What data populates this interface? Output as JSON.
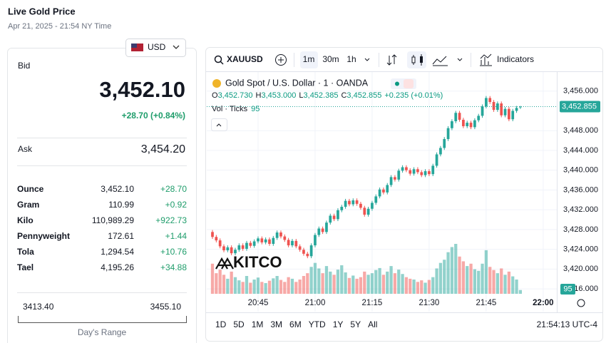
{
  "header": {
    "title": "Live Gold Price",
    "date": "Apr 21, 2025 - 21:54 NY Time",
    "currency": "USD"
  },
  "quote": {
    "bid_label": "Bid",
    "bid": "3,452.10",
    "change": "+28.70 (+0.84%)",
    "ask_label": "Ask",
    "ask": "3,454.20",
    "rows": [
      [
        "Ounce",
        "3,452.10",
        "+28.70"
      ],
      [
        "Gram",
        "110.99",
        "+0.92"
      ],
      [
        "Kilo",
        "110,989.29",
        "+922.73"
      ],
      [
        "Pennyweight",
        "172.61",
        "+1.44"
      ],
      [
        "Tola",
        "1,294.54",
        "+10.76"
      ],
      [
        "Tael",
        "4,195.26",
        "+34.88"
      ]
    ],
    "range_low": "3413.40",
    "range_high": "3455.10",
    "range_label": "Day's Range"
  },
  "chart_ui": {
    "symbol": "XAUUSD",
    "intervals": [
      "1m",
      "30m",
      "1h"
    ],
    "indicators": "Indicators",
    "title": "Gold Spot / U.S. Dollar · 1 · OANDA",
    "legend": {
      "o": "O",
      "open": "3,452.730",
      "h": "H",
      "high": "3,453.000",
      "l": "L",
      "low": "3,452.385",
      "c": "C",
      "close": "3,452.855",
      "change": "+0.235 (+0.01%)"
    },
    "periods": [
      "1D",
      "5D",
      "1M",
      "3M",
      "6M",
      "YTD",
      "1Y",
      "5Y",
      "All"
    ],
    "clock": "21:54:13 UTC-4",
    "watermark": "KITCO"
  },
  "chart_data": {
    "type": "candlestick",
    "up_color": "#26a69a",
    "down_color": "#ef5350",
    "xlim": [
      1231.5,
      1323.4
    ],
    "xticks": [
      {
        "value": 1245,
        "label": "20:45"
      },
      {
        "value": 1260,
        "label": "21:00"
      },
      {
        "value": 1275,
        "label": "21:15"
      },
      {
        "value": 1290,
        "label": "21:30"
      },
      {
        "value": 1305,
        "label": "21:45"
      },
      {
        "value": 1320,
        "label": "22:00"
      }
    ],
    "ylim": [
      3415,
      3460
    ],
    "yticks": [
      {
        "value": 3456,
        "label": "3,456.000"
      },
      {
        "value": 3448,
        "label": "3,448.000"
      },
      {
        "value": 3444,
        "label": "3,444.000"
      },
      {
        "value": 3440,
        "label": "3,440.000"
      },
      {
        "value": 3436,
        "label": "3,436.000"
      },
      {
        "value": 3432,
        "label": "3,432.000"
      },
      {
        "value": 3428,
        "label": "3,428.000"
      },
      {
        "value": 3424,
        "label": "3,424.000"
      },
      {
        "value": 3420,
        "label": "3,420.000"
      },
      {
        "value": 3416,
        "label": "3,416.000"
      }
    ],
    "grid": true,
    "last_price": {
      "value": 3452.855,
      "label": "3,452.855"
    },
    "x": [
      1233,
      1234,
      1235,
      1236,
      1237,
      1238,
      1239,
      1240,
      1241,
      1242,
      1243,
      1244,
      1245,
      1246,
      1247,
      1248,
      1249,
      1250,
      1251,
      1252,
      1253,
      1254,
      1255,
      1256,
      1257,
      1258,
      1259,
      1260,
      1261,
      1262,
      1263,
      1264,
      1265,
      1266,
      1267,
      1268,
      1269,
      1270,
      1271,
      1272,
      1273,
      1274,
      1275,
      1276,
      1277,
      1278,
      1279,
      1280,
      1281,
      1282,
      1283,
      1284,
      1285,
      1286,
      1287,
      1288,
      1289,
      1290,
      1291,
      1292,
      1293,
      1294,
      1295,
      1296,
      1297,
      1298,
      1299,
      1300,
      1301,
      1302,
      1303,
      1304,
      1305,
      1306,
      1307,
      1308,
      1309,
      1310,
      1311,
      1312,
      1313,
      1314
    ],
    "open": [
      3427.5,
      3426.5,
      3425.8,
      3424.6,
      3423.8,
      3424.4,
      3423.2,
      3423.9,
      3424.8,
      3424.1,
      3425.3,
      3424.7,
      3425.6,
      3426.2,
      3425.4,
      3426.0,
      3425.1,
      3426.3,
      3427.4,
      3426.6,
      3425.9,
      3424.8,
      3425.7,
      3424.6,
      3423.9,
      3423.1,
      3422.6,
      3424.8,
      3426.9,
      3428.2,
      3427.5,
      3429.4,
      3430.8,
      3430.1,
      3431.9,
      3432.6,
      3433.8,
      3433.1,
      3433.9,
      3433.2,
      3432.4,
      3431.0,
      3432.2,
      3433.4,
      3434.7,
      3436.1,
      3435.5,
      3437.0,
      3438.6,
      3438.1,
      3439.9,
      3440.6,
      3440.0,
      3439.3,
      3440.2,
      3439.6,
      3439.0,
      3439.8,
      3439.2,
      3440.9,
      3443.2,
      3444.5,
      3446.3,
      3448.5,
      3449.9,
      3451.6,
      3450.2,
      3448.9,
      3449.6,
      3448.7,
      3450.1,
      3451.0,
      3452.9,
      3454.6,
      3453.8,
      3452.2,
      3453.5,
      3451.1,
      3452.4,
      3450.3,
      3452.0,
      3452.73
    ],
    "high": [
      3427.9,
      3426.9,
      3426.2,
      3425.0,
      3424.8,
      3424.8,
      3424.3,
      3425.2,
      3425.2,
      3425.7,
      3425.7,
      3426.0,
      3426.6,
      3426.6,
      3426.4,
      3426.4,
      3426.7,
      3427.8,
      3427.8,
      3427.0,
      3426.3,
      3426.1,
      3426.1,
      3425.0,
      3424.3,
      3423.5,
      3425.2,
      3427.3,
      3428.6,
      3428.6,
      3429.8,
      3431.2,
      3431.2,
      3432.3,
      3433.0,
      3434.2,
      3434.2,
      3434.3,
      3434.3,
      3433.6,
      3432.8,
      3432.6,
      3433.8,
      3435.1,
      3436.5,
      3436.5,
      3437.4,
      3439.0,
      3439.0,
      3440.3,
      3441.0,
      3441.0,
      3440.4,
      3440.6,
      3440.6,
      3440.0,
      3440.2,
      3440.2,
      3441.3,
      3443.6,
      3444.9,
      3446.7,
      3448.9,
      3450.3,
      3452.0,
      3452.0,
      3450.6,
      3450.0,
      3450.0,
      3450.5,
      3451.4,
      3453.3,
      3455.0,
      3455.0,
      3454.2,
      3453.9,
      3453.9,
      3452.8,
      3452.8,
      3452.4,
      3453.0,
      3453.0
    ],
    "low": [
      3426.1,
      3425.4,
      3424.2,
      3423.4,
      3423.4,
      3422.8,
      3422.8,
      3423.5,
      3423.7,
      3423.7,
      3424.3,
      3424.3,
      3425.2,
      3425.0,
      3425.0,
      3424.7,
      3424.7,
      3425.9,
      3426.2,
      3425.5,
      3424.4,
      3424.4,
      3424.2,
      3423.5,
      3422.7,
      3422.2,
      3422.2,
      3424.4,
      3426.5,
      3427.1,
      3427.1,
      3429.0,
      3429.7,
      3429.7,
      3431.5,
      3432.2,
      3432.7,
      3432.7,
      3432.8,
      3432.0,
      3430.6,
      3430.6,
      3431.8,
      3433.0,
      3434.3,
      3435.1,
      3435.1,
      3436.6,
      3437.7,
      3437.7,
      3439.5,
      3439.6,
      3438.9,
      3438.9,
      3439.2,
      3438.6,
      3438.6,
      3438.8,
      3438.8,
      3440.5,
      3442.8,
      3444.1,
      3445.9,
      3448.1,
      3449.5,
      3449.8,
      3448.5,
      3448.5,
      3448.3,
      3448.3,
      3449.7,
      3450.6,
      3452.5,
      3453.4,
      3451.8,
      3451.8,
      3450.7,
      3450.7,
      3449.9,
      3449.9,
      3451.6,
      3452.385
    ],
    "close": [
      3426.5,
      3425.8,
      3424.6,
      3423.8,
      3424.4,
      3423.2,
      3423.9,
      3424.8,
      3424.1,
      3425.3,
      3424.7,
      3425.6,
      3426.2,
      3425.4,
      3426.0,
      3425.1,
      3426.3,
      3427.4,
      3426.6,
      3425.9,
      3424.8,
      3425.7,
      3424.6,
      3423.9,
      3423.1,
      3422.6,
      3424.8,
      3426.9,
      3428.2,
      3427.5,
      3429.4,
      3430.8,
      3430.1,
      3431.9,
      3432.6,
      3433.8,
      3433.1,
      3433.9,
      3433.2,
      3432.4,
      3431.0,
      3432.2,
      3433.4,
      3434.7,
      3436.1,
      3435.5,
      3437.0,
      3438.6,
      3438.1,
      3439.9,
      3440.6,
      3440.0,
      3439.3,
      3440.2,
      3439.6,
      3439.0,
      3439.8,
      3439.2,
      3440.9,
      3443.2,
      3444.5,
      3446.3,
      3448.5,
      3449.9,
      3451.6,
      3450.2,
      3448.9,
      3449.6,
      3448.7,
      3450.1,
      3451.0,
      3452.9,
      3454.6,
      3453.8,
      3452.2,
      3453.5,
      3451.1,
      3452.4,
      3450.3,
      3452.0,
      3452.6,
      3452.855
    ],
    "volume": {
      "label": "Vol · Ticks",
      "values": [
        760,
        520,
        610,
        480,
        380,
        560,
        420,
        340,
        300,
        450,
        280,
        360,
        410,
        300,
        270,
        330,
        390,
        450,
        350,
        300,
        420,
        380,
        300,
        360,
        450,
        520,
        680,
        780,
        640,
        520,
        700,
        560,
        480,
        610,
        720,
        540,
        400,
        460,
        380,
        420,
        560,
        480,
        520,
        600,
        650,
        480,
        560,
        700,
        520,
        610,
        500,
        420,
        380,
        360,
        300,
        340,
        280,
        350,
        420,
        640,
        780,
        860,
        1050,
        1180,
        1260,
        940,
        820,
        700,
        760,
        620,
        580,
        760,
        1100,
        680,
        600,
        520,
        640,
        480,
        560,
        440,
        360,
        95
      ]
    }
  }
}
